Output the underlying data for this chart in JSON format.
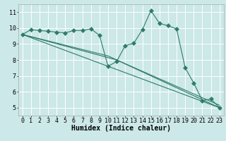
{
  "xlabel": "Humidex (Indice chaleur)",
  "background_color": "#cce8e8",
  "grid_color": "#ffffff",
  "line_color": "#2e7b6b",
  "xlim": [
    -0.5,
    23.5
  ],
  "ylim": [
    4.5,
    11.5
  ],
  "yticks": [
    5,
    6,
    7,
    8,
    9,
    10,
    11
  ],
  "xticks": [
    0,
    1,
    2,
    3,
    4,
    5,
    6,
    7,
    8,
    9,
    10,
    11,
    12,
    13,
    14,
    15,
    16,
    17,
    18,
    19,
    20,
    21,
    22,
    23
  ],
  "main_x": [
    0,
    1,
    2,
    3,
    4,
    5,
    6,
    7,
    8,
    9,
    10,
    11,
    12,
    13,
    14,
    15,
    16,
    17,
    18,
    19,
    20,
    21,
    22,
    23
  ],
  "main_y": [
    9.6,
    9.9,
    9.85,
    9.8,
    9.75,
    9.7,
    9.85,
    9.85,
    9.95,
    9.55,
    7.6,
    7.9,
    8.9,
    9.05,
    9.9,
    11.1,
    10.3,
    10.15,
    9.95,
    7.5,
    6.55,
    5.45,
    5.55,
    5.0
  ],
  "trend1_x": [
    0,
    23
  ],
  "trend1_y": [
    9.6,
    5.0
  ],
  "trend2_x": [
    0,
    10,
    23
  ],
  "trend2_y": [
    9.6,
    8.25,
    5.0
  ],
  "trend3_x": [
    0,
    11,
    23
  ],
  "trend3_y": [
    9.6,
    8.0,
    5.15
  ],
  "font_size_xlabel": 7,
  "font_size_ticks": 6,
  "linewidth": 0.8,
  "markersize": 3.0
}
